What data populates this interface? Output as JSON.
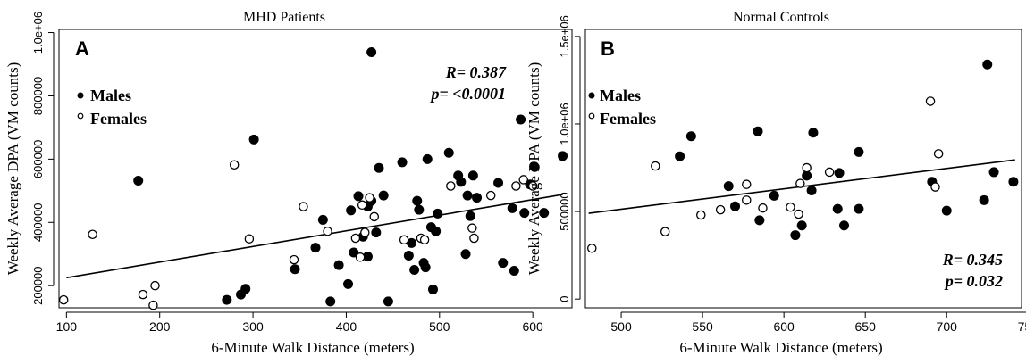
{
  "chart_data": [
    {
      "type": "scatter",
      "panel_letter": "A",
      "title": "MHD Patients",
      "xlabel": "6-Minute Walk Distance (meters)",
      "ylabel": "Weekly Average DPA (VM counts)",
      "xlim": [
        92,
        642
      ],
      "ylim": [
        130000,
        1010000
      ],
      "xticks": [
        100,
        200,
        300,
        400,
        500,
        600
      ],
      "xtick_labels": [
        "100",
        "200",
        "300",
        "400",
        "500",
        "600"
      ],
      "yticks": [
        200000,
        400000,
        600000,
        800000,
        1000000
      ],
      "ytick_labels": [
        "200000",
        "400000",
        "600000",
        "800000",
        "1.0e+06"
      ],
      "stats": {
        "r": "R= 0.387",
        "p": "p= <0.0001"
      },
      "legend": {
        "position": "top-left",
        "entries": [
          "Males",
          "Females"
        ]
      },
      "regression": {
        "x": [
          100,
          632
        ],
        "y": [
          225000,
          488000
        ]
      },
      "series": [
        {
          "name": "Males",
          "marker": "filled",
          "points": [
            [
              177,
              532000
            ],
            [
              301,
              662000
            ],
            [
              427,
              938000
            ],
            [
              587,
              725000
            ],
            [
              272,
              155000
            ],
            [
              287,
              172000
            ],
            [
              292,
              190000
            ],
            [
              345,
              252000
            ],
            [
              375,
              408000
            ],
            [
              383,
              150000
            ],
            [
              392,
              265000
            ],
            [
              402,
              205000
            ],
            [
              405,
              438000
            ],
            [
              408,
              305000
            ],
            [
              413,
              483000
            ],
            [
              418,
              355000
            ],
            [
              423,
              450000
            ],
            [
              427,
              468000
            ],
            [
              432,
              368000
            ],
            [
              435,
              572000
            ],
            [
              440,
              485000
            ],
            [
              445,
              150000
            ],
            [
              460,
              590000
            ],
            [
              467,
              295000
            ],
            [
              470,
              335000
            ],
            [
              473,
              250000
            ],
            [
              476,
              468000
            ],
            [
              478,
              440000
            ],
            [
              483,
              272000
            ],
            [
              485,
              258000
            ],
            [
              487,
              600000
            ],
            [
              491,
              385000
            ],
            [
              493,
              188000
            ],
            [
              496,
              372000
            ],
            [
              498,
              428000
            ],
            [
              520,
              548000
            ],
            [
              523,
              528000
            ],
            [
              528,
              300000
            ],
            [
              530,
              485000
            ],
            [
              533,
              420000
            ],
            [
              536,
              548000
            ],
            [
              540,
              478000
            ],
            [
              563,
              525000
            ],
            [
              568,
              272000
            ],
            [
              578,
              445000
            ],
            [
              580,
              247000
            ],
            [
              591,
              430000
            ],
            [
              597,
              520000
            ],
            [
              602,
              575000
            ],
            [
              612,
              430000
            ],
            [
              632,
              610000
            ],
            [
              367,
              320000
            ],
            [
              423,
              292000
            ],
            [
              510,
              620000
            ]
          ]
        },
        {
          "name": "Females",
          "marker": "open",
          "points": [
            [
              97,
              155000
            ],
            [
              128,
              362000
            ],
            [
              182,
              172000
            ],
            [
              193,
              138000
            ],
            [
              195,
              200000
            ],
            [
              280,
              582000
            ],
            [
              296,
              348000
            ],
            [
              344,
              282000
            ],
            [
              354,
              450000
            ],
            [
              380,
              372000
            ],
            [
              410,
              350000
            ],
            [
              415,
              290000
            ],
            [
              417,
              455000
            ],
            [
              420,
              368000
            ],
            [
              425,
              478000
            ],
            [
              430,
              418000
            ],
            [
              462,
              345000
            ],
            [
              480,
              350000
            ],
            [
              484,
              345000
            ],
            [
              512,
              515000
            ],
            [
              535,
              382000
            ],
            [
              537,
              350000
            ],
            [
              555,
              485000
            ],
            [
              582,
              515000
            ],
            [
              590,
              535000
            ],
            [
              600,
              515000
            ]
          ]
        }
      ]
    },
    {
      "type": "scatter",
      "panel_letter": "B",
      "title": "Normal Controls",
      "xlabel": "6-Minute Walk Distance (meters)",
      "ylabel": "Weekly Average DPA (VM counts)",
      "xlim": [
        478,
        746
      ],
      "ylim": [
        -50000,
        1540000
      ],
      "xticks": [
        500,
        550,
        600,
        650,
        700,
        750
      ],
      "xtick_labels": [
        "500",
        "550",
        "600",
        "650",
        "700",
        "750"
      ],
      "yticks": [
        0,
        500000,
        1000000,
        1500000
      ],
      "ytick_labels": [
        "0",
        "500000",
        "1.0e+06",
        "1.5e+06"
      ],
      "stats": {
        "r": "R= 0.345",
        "p": "p= 0.032"
      },
      "legend": {
        "position": "top-left",
        "entries": [
          "Males",
          "Females"
        ]
      },
      "regression": {
        "x": [
          480,
          742
        ],
        "y": [
          490000,
          795000
        ]
      },
      "series": [
        {
          "name": "Males",
          "marker": "filled",
          "points": [
            [
              536,
              815000
            ],
            [
              543,
              930000
            ],
            [
              566,
              645000
            ],
            [
              570,
              530000
            ],
            [
              584,
              958000
            ],
            [
              585,
              450000
            ],
            [
              594,
              590000
            ],
            [
              607,
              365000
            ],
            [
              611,
              420000
            ],
            [
              614,
              705000
            ],
            [
              617,
              620000
            ],
            [
              618,
              950000
            ],
            [
              633,
              515000
            ],
            [
              634,
              720000
            ],
            [
              637,
              420000
            ],
            [
              646,
              840000
            ],
            [
              646,
              515000
            ],
            [
              691,
              670000
            ],
            [
              700,
              505000
            ],
            [
              723,
              565000
            ],
            [
              725,
              1340000
            ],
            [
              729,
              725000
            ],
            [
              741,
              670000
            ]
          ]
        },
        {
          "name": "Females",
          "marker": "open",
          "points": [
            [
              482,
              290000
            ],
            [
              521,
              760000
            ],
            [
              527,
              385000
            ],
            [
              549,
              480000
            ],
            [
              561,
              510000
            ],
            [
              577,
              565000
            ],
            [
              577,
              655000
            ],
            [
              587,
              520000
            ],
            [
              604,
              525000
            ],
            [
              609,
              485000
            ],
            [
              610,
              660000
            ],
            [
              614,
              750000
            ],
            [
              628,
              725000
            ],
            [
              690,
              1130000
            ],
            [
              693,
              640000
            ],
            [
              695,
              830000
            ]
          ]
        }
      ]
    }
  ]
}
